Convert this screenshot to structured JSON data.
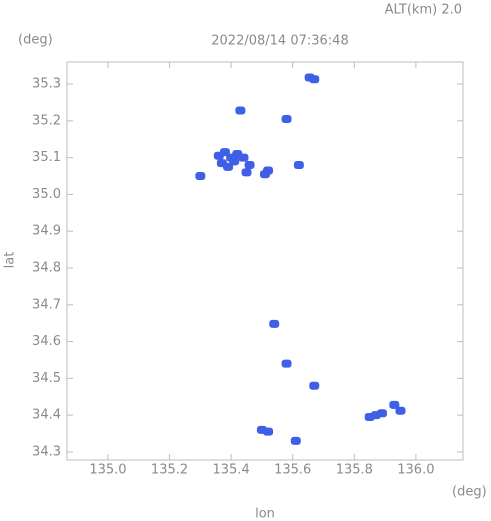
{
  "chart_data": {
    "type": "scatter",
    "title": "2022/08/14 07:36:48",
    "subtitle": "ALT(km) 2.0",
    "x_unit": "(deg)",
    "y_unit": "(deg)",
    "x_label": "lon",
    "y_label": "lat",
    "color": "#3f5fe6",
    "x": [
      135.655,
      135.67,
      135.43,
      135.58,
      135.36,
      135.38,
      135.4,
      135.37,
      135.39,
      135.41,
      135.42,
      135.44,
      135.46,
      135.45,
      135.52,
      135.51,
      135.62,
      135.3,
      135.54,
      135.58,
      135.67,
      135.5,
      135.52,
      135.61,
      135.85,
      135.87,
      135.89,
      135.93,
      135.95
    ],
    "y": [
      35.318,
      35.313,
      35.228,
      35.205,
      35.105,
      35.115,
      35.1,
      35.085,
      35.075,
      35.09,
      35.11,
      35.1,
      35.08,
      35.06,
      35.065,
      35.055,
      35.08,
      35.05,
      34.648,
      34.54,
      34.48,
      34.36,
      34.355,
      34.33,
      34.395,
      34.4,
      34.405,
      34.428,
      34.412
    ],
    "xlim": [
      134.867,
      136.153
    ],
    "ylim": [
      34.278,
      35.36
    ],
    "xticks": [
      {
        "value": 135.0,
        "label": "135.0"
      },
      135.2,
      135.4,
      135.6,
      135.8,
      {
        "value": 136.0,
        "label": "136.0"
      }
    ],
    "yticks": [
      34.3,
      34.4,
      34.5,
      34.6,
      34.7,
      34.8,
      34.9,
      {
        "value": 35.0,
        "label": "35.0"
      },
      35.1,
      35.2,
      35.3
    ]
  }
}
